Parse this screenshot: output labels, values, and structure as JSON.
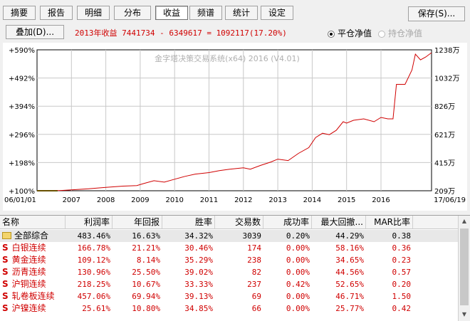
{
  "tabs": [
    {
      "label": "摘要",
      "active": false
    },
    {
      "label": "报告",
      "active": false
    },
    {
      "label": "明细",
      "active": false
    },
    {
      "label": "分布",
      "active": false
    },
    {
      "label": "收益",
      "active": true
    },
    {
      "label": "频谱",
      "active": false
    },
    {
      "label": "统计",
      "active": false
    },
    {
      "label": "设定",
      "active": false
    }
  ],
  "save_button": "保存(S)...",
  "overlay_button": "叠加(D)...",
  "summary_text": "2013年收益 7441734 - 6349617 = 1092117(17.20%)",
  "radio": {
    "option1": {
      "label": "平仓净值",
      "checked": true
    },
    "option2": {
      "label": "持仓净值",
      "checked": false,
      "disabled": true
    }
  },
  "colors": {
    "line": "#d00000",
    "baseline": "#00a000",
    "grid": "#c8c8c8",
    "summary": "#d00000"
  },
  "chart_data": {
    "type": "line",
    "watermark": "金字塔决策交易系统(x64) 2016 (V4.01)",
    "start_label": "06/01/01",
    "end_label": "17/06/19",
    "x_ticks": [
      "2007",
      "2008",
      "2009",
      "2010",
      "2011",
      "2012",
      "2013",
      "2014",
      "2015",
      "2016"
    ],
    "y_left_ticks": [
      "+100%",
      "+198%",
      "+296%",
      "+394%",
      "+492%",
      "+590%"
    ],
    "y_right_ticks": [
      "209万",
      "415万",
      "621万",
      "826万",
      "1032万",
      "1238万"
    ],
    "ylim": [
      100,
      590
    ],
    "xlim": [
      2006.0,
      2017.47
    ],
    "series": [
      {
        "values": [
          [
            2006.0,
            100
          ],
          [
            2006.5,
            100
          ],
          [
            2006.7,
            101
          ],
          [
            2007.0,
            103
          ],
          [
            2007.5,
            107
          ],
          [
            2008.0,
            112
          ],
          [
            2008.5,
            116
          ],
          [
            2008.9,
            118
          ],
          [
            2009.1,
            125
          ],
          [
            2009.4,
            135
          ],
          [
            2009.7,
            130
          ],
          [
            2010.0,
            140
          ],
          [
            2010.3,
            150
          ],
          [
            2010.6,
            158
          ],
          [
            2011.0,
            163
          ],
          [
            2011.3,
            170
          ],
          [
            2011.6,
            175
          ],
          [
            2012.0,
            180
          ],
          [
            2012.2,
            175
          ],
          [
            2012.5,
            188
          ],
          [
            2012.8,
            200
          ],
          [
            2013.0,
            210
          ],
          [
            2013.3,
            205
          ],
          [
            2013.6,
            230
          ],
          [
            2013.9,
            250
          ],
          [
            2014.1,
            285
          ],
          [
            2014.3,
            300
          ],
          [
            2014.5,
            295
          ],
          [
            2014.7,
            310
          ],
          [
            2014.9,
            340
          ],
          [
            2015.0,
            335
          ],
          [
            2015.2,
            345
          ],
          [
            2015.5,
            350
          ],
          [
            2015.8,
            340
          ],
          [
            2016.0,
            355
          ],
          [
            2016.2,
            350
          ],
          [
            2016.35,
            350
          ],
          [
            2016.45,
            470
          ],
          [
            2016.7,
            470
          ],
          [
            2016.9,
            520
          ],
          [
            2017.0,
            575
          ],
          [
            2017.15,
            555
          ],
          [
            2017.3,
            565
          ],
          [
            2017.47,
            580
          ]
        ]
      }
    ]
  },
  "table": {
    "columns": [
      "名称",
      "利润率",
      "年回报",
      "胜率",
      "交易数",
      "成功率",
      "最大回撤...",
      "MAR比率"
    ],
    "rows": [
      {
        "type": "total",
        "name": "全部综合",
        "cells": [
          "483.46%",
          "16.63%",
          "34.32%",
          "3039",
          "0.20%",
          "44.29%",
          "0.38"
        ]
      },
      {
        "type": "sub",
        "name": "白银连续",
        "cells": [
          "166.78%",
          "21.21%",
          "30.46%",
          "174",
          "0.00%",
          "58.16%",
          "0.36"
        ]
      },
      {
        "type": "sub",
        "name": "黄金连续",
        "cells": [
          "109.12%",
          "8.14%",
          "35.29%",
          "238",
          "0.00%",
          "34.65%",
          "0.23"
        ]
      },
      {
        "type": "sub",
        "name": "沥青连续",
        "cells": [
          "130.96%",
          "25.50%",
          "39.02%",
          "82",
          "0.00%",
          "44.56%",
          "0.57"
        ]
      },
      {
        "type": "sub",
        "name": "沪铜连续",
        "cells": [
          "218.25%",
          "10.67%",
          "33.33%",
          "237",
          "0.42%",
          "52.65%",
          "0.20"
        ]
      },
      {
        "type": "sub",
        "name": "轧卷板连续",
        "cells": [
          "457.06%",
          "69.94%",
          "39.13%",
          "69",
          "0.00%",
          "46.71%",
          "1.50"
        ]
      },
      {
        "type": "sub",
        "name": "沪镍连续",
        "cells": [
          "25.61%",
          "10.80%",
          "34.85%",
          "66",
          "0.00%",
          "25.77%",
          "0.42"
        ]
      }
    ]
  }
}
